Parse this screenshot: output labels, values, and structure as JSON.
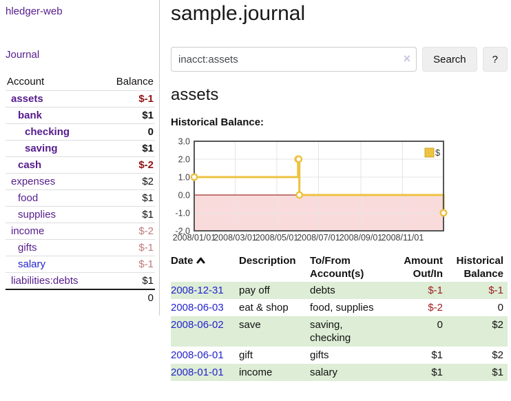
{
  "colors": {
    "accent_purple": "#561b8d",
    "link_blue": "#2323cd",
    "negative_strong": "#931111",
    "negative_soft": "#c1797d",
    "row_stripe_green": "#ddedd6",
    "chart_gold": "#edc240",
    "chart_negative_fill": "#fadbdb",
    "chart_zero_line": "#8b0000"
  },
  "sidebar": {
    "app_title": "hledger-web",
    "nav": {
      "journal_label": "Journal"
    },
    "accounts_table": {
      "headers": {
        "account": "Account",
        "balance": "Balance"
      },
      "rows": [
        {
          "name": "assets",
          "level": 0,
          "emphasized": true,
          "balance": "$-1"
        },
        {
          "name": "bank",
          "level": 1,
          "emphasized": true,
          "balance": "$1"
        },
        {
          "name": "checking",
          "level": 2,
          "emphasized": true,
          "balance": "0"
        },
        {
          "name": "saving",
          "level": 2,
          "emphasized": true,
          "balance": "$1"
        },
        {
          "name": "cash",
          "level": 1,
          "emphasized": true,
          "balance": "$-2"
        },
        {
          "name": "expenses",
          "level": 0,
          "emphasized": false,
          "balance": "$2"
        },
        {
          "name": "food",
          "level": 1,
          "emphasized": false,
          "balance": "$1"
        },
        {
          "name": "supplies",
          "level": 1,
          "emphasized": false,
          "balance": "$1"
        },
        {
          "name": "income",
          "level": 0,
          "emphasized": false,
          "balance": "$-2"
        },
        {
          "name": "gifts",
          "level": 1,
          "emphasized": false,
          "balance": "$-1"
        },
        {
          "name": "salary",
          "level": 1,
          "emphasized": false,
          "balance": "$-1",
          "link_style": "unvisited"
        },
        {
          "name": "liabilities:debts",
          "level": 0,
          "emphasized": false,
          "balance": "$1"
        }
      ],
      "total": "0"
    }
  },
  "main": {
    "title": "sample.journal",
    "search": {
      "value": "inacct:assets",
      "clear_icon": "×",
      "button_label": "Search",
      "help_label": "?"
    },
    "account_heading": "assets",
    "chart_heading": "Historical Balance:"
  },
  "chart_data": {
    "type": "line",
    "step": true,
    "title": "Historical Balance:",
    "x_range": [
      "2008-01-01",
      "2008-12-31"
    ],
    "ylim": [
      -2,
      3
    ],
    "y_ticks": [
      "3.0",
      "2.0",
      "1.0",
      "0.0",
      "-1.0",
      "-2.0"
    ],
    "x_tick_labels": [
      "2008/01/01",
      "2008/03/01",
      "2008/05/01",
      "2008/07/01",
      "2008/09/01",
      "2008/11/01"
    ],
    "series": [
      {
        "name": "$",
        "color": "#edc240",
        "points": [
          {
            "x": "2008-01-01",
            "y": 1
          },
          {
            "x": "2008-06-01",
            "y": 2
          },
          {
            "x": "2008-06-02",
            "y": 2
          },
          {
            "x": "2008-06-03",
            "y": 0
          },
          {
            "x": "2008-12-31",
            "y": -1
          }
        ]
      }
    ],
    "negative_region_color": "#fadbdb",
    "zero_line_color": "#8b0000",
    "grid_color": "#e4e4e4",
    "border_color": "#545454",
    "legend": {
      "label": "$",
      "position": "top-right"
    }
  },
  "register_table": {
    "headers": {
      "date": "Date",
      "description": "Description",
      "accounts": "To/From Account(s)",
      "amount": "Amount Out/In",
      "balance": "Historical Balance"
    },
    "rows": [
      {
        "date": "2008-12-31",
        "description": "pay off",
        "accounts": "debts",
        "amount": "$-1",
        "balance": "$-1"
      },
      {
        "date": "2008-06-03",
        "description": "eat & shop",
        "accounts": "food, supplies",
        "amount": "$-2",
        "balance": "0"
      },
      {
        "date": "2008-06-02",
        "description": "save",
        "accounts": "saving, checking",
        "amount": "0",
        "balance": "$2"
      },
      {
        "date": "2008-06-01",
        "description": "gift",
        "accounts": "gifts",
        "amount": "$1",
        "balance": "$2"
      },
      {
        "date": "2008-01-01",
        "description": "income",
        "accounts": "salary",
        "amount": "$1",
        "balance": "$1"
      }
    ]
  }
}
